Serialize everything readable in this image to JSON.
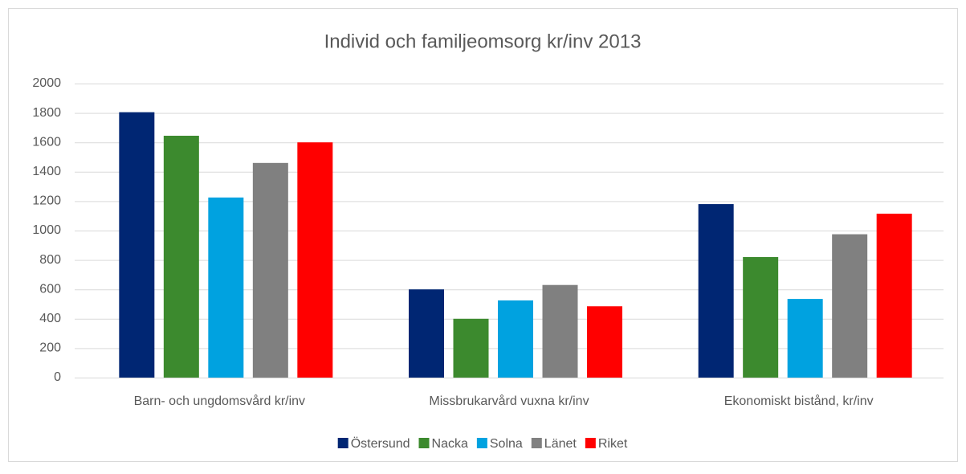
{
  "chart_data": {
    "type": "bar",
    "title": "Individ och familjeomsorg kr/inv 2013",
    "categories": [
      "Barn- och ungdomsvård kr/inv",
      "Missbrukarvård vuxna kr/inv",
      "Ekonomiskt bistånd, kr/inv"
    ],
    "series": [
      {
        "name": "Östersund",
        "color": "#002673",
        "values": [
          1805,
          600,
          1180
        ]
      },
      {
        "name": "Nacka",
        "color": "#3c8a2e",
        "values": [
          1645,
          400,
          820
        ]
      },
      {
        "name": "Solna",
        "color": "#00a2e0",
        "values": [
          1225,
          525,
          535
        ]
      },
      {
        "name": "Länet",
        "color": "#808080",
        "values": [
          1460,
          630,
          975
        ]
      },
      {
        "name": "Riket",
        "color": "#ff0000",
        "values": [
          1600,
          485,
          1115
        ]
      }
    ],
    "ylim": [
      0,
      2000
    ],
    "yticks": [
      0,
      200,
      400,
      600,
      800,
      1000,
      1200,
      1400,
      1600,
      1800,
      2000
    ],
    "grid": true,
    "legend": "bottom"
  }
}
